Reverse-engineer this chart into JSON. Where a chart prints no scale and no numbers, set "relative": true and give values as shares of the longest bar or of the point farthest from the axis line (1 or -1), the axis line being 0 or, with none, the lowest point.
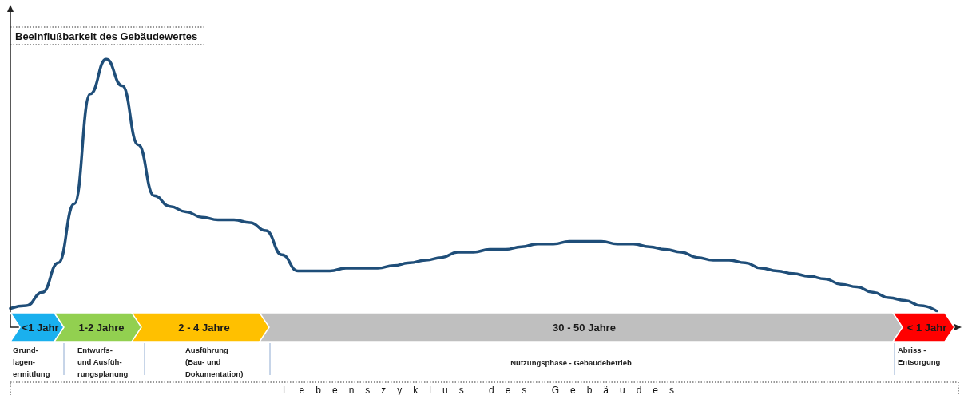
{
  "chart_data": {
    "type": "line",
    "relative": true,
    "ylabel": "Beeinflußbarkeit des Gebäudewertes",
    "marker": "none",
    "line_style": "solid",
    "categories": [
      null,
      null,
      null,
      null,
      null,
      null,
      null,
      null,
      null,
      null,
      null,
      null,
      null,
      null,
      null,
      null,
      null,
      null,
      null,
      null,
      null,
      null,
      null,
      null,
      null,
      null,
      null,
      null,
      null,
      null,
      null,
      null,
      null,
      null,
      null,
      null,
      null,
      null,
      null,
      null,
      null,
      null,
      null,
      null,
      null,
      null,
      null,
      null,
      null,
      null,
      null,
      null,
      null,
      null,
      null,
      null,
      null,
      null,
      null
    ],
    "series": [
      {
        "color": "#1f4e79",
        "values": [
          0.07,
          0.08,
          0.13,
          0.24,
          0.46,
          0.87,
          1,
          0.9,
          0.68,
          0.49,
          0.45,
          0.43,
          0.41,
          0.4,
          0.4,
          0.39,
          0.36,
          0.27,
          0.21,
          0.21,
          0.21,
          0.22,
          0.22,
          0.22,
          0.23,
          0.24,
          0.25,
          0.26,
          0.28,
          0.28,
          0.29,
          0.29,
          0.3,
          0.31,
          0.31,
          0.32,
          0.32,
          0.32,
          0.31,
          0.31,
          0.3,
          0.29,
          0.28,
          0.26,
          0.25,
          0.25,
          0.24,
          0.22,
          0.21,
          0.2,
          0.19,
          0.18,
          0.16,
          0.15,
          0.13,
          0.11,
          0.1,
          0.08,
          0.06
        ]
      }
    ],
    "annotations": [
      "<1 Jahr",
      "1-2 Jahre",
      "2 - 4 Jahre",
      "30 - 50 Jahre",
      "< 1 Jahr",
      "Grund-\nlagen-\nermittlung",
      "Entwurfs-\nund Ausfüh-\nrungsplanung",
      "Ausführung\n(Bau- und\nDokumentation)",
      "Nutzungsphase - Gebäudebetrieb",
      "Abriss -\nEntsorgung",
      "Lebenszyklus des Gebäudes"
    ]
  }
}
